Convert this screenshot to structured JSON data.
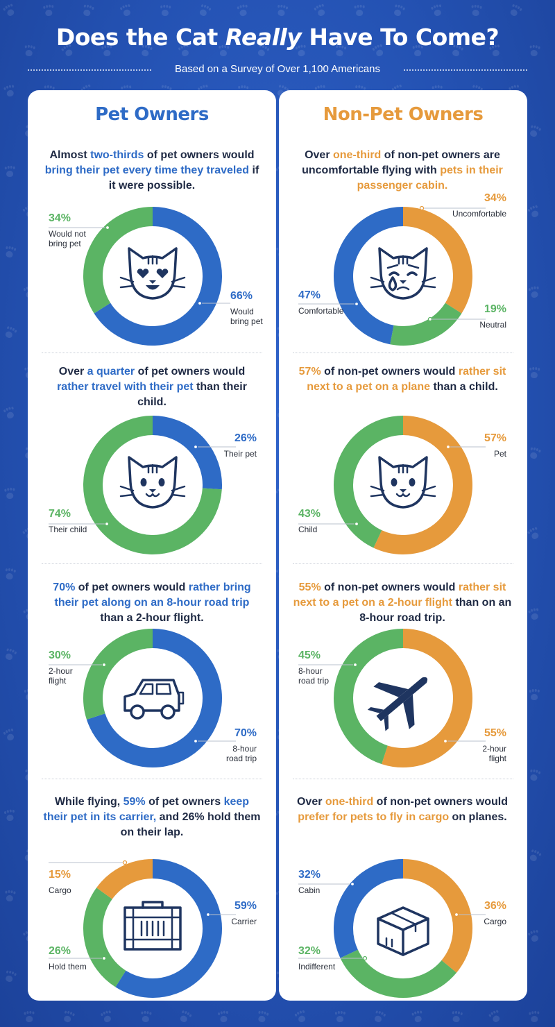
{
  "title_pre": "Does the Cat ",
  "title_em": "Really",
  "title_post": " Have To Come?",
  "subtitle": "Based on a Survey of Over 1,100 Americans",
  "colors": {
    "blue": "#2e6bc6",
    "green": "#5bb464",
    "orange": "#e69a3c",
    "navy": "#1f3560"
  },
  "left": {
    "heading": "Pet Owners",
    "statements": [
      [
        [
          "Almost ",
          ""
        ],
        [
          "two-thirds",
          "c"
        ],
        [
          " of pet owners would ",
          ""
        ],
        [
          "bring their pet every time they traveled",
          "c"
        ],
        [
          " if it were possible.",
          ""
        ]
      ],
      [
        [
          "Over ",
          ""
        ],
        [
          "a quarter",
          "c"
        ],
        [
          " of pet owners would ",
          ""
        ],
        [
          "rather travel with their pet",
          "c"
        ],
        [
          " than their child.",
          ""
        ]
      ],
      [
        [
          "70%",
          "c"
        ],
        [
          " of pet owners would ",
          ""
        ],
        [
          "rather bring their pet along on an 8-hour road trip",
          "c"
        ],
        [
          " than a 2-hour flight.",
          ""
        ]
      ],
      [
        [
          "While flying, ",
          ""
        ],
        [
          "59%",
          "c"
        ],
        [
          " of pet owners ",
          ""
        ],
        [
          "keep their pet in its carrier,",
          "c"
        ],
        [
          " and 26% hold them on their lap.",
          ""
        ]
      ]
    ]
  },
  "right": {
    "heading": "Non-Pet Owners",
    "statements": [
      [
        [
          "Over ",
          ""
        ],
        [
          "one-third",
          "o"
        ],
        [
          " of non-pet owners are uncomfortable flying with ",
          ""
        ],
        [
          "pets in their passenger cabin.",
          "o"
        ]
      ],
      [
        [
          "57%",
          "o"
        ],
        [
          " of non-pet owners would ",
          ""
        ],
        [
          "rather sit next to a pet on a plane",
          "o"
        ],
        [
          " than a child.",
          ""
        ]
      ],
      [
        [
          "55%",
          "o"
        ],
        [
          " of non-pet owners would ",
          ""
        ],
        [
          "rather sit next to a pet on a 2-hour flight",
          "o"
        ],
        [
          " than on an 8-hour road trip.",
          ""
        ]
      ],
      [
        [
          "Over ",
          ""
        ],
        [
          "one-third",
          "o"
        ],
        [
          " of non-pet owners would ",
          ""
        ],
        [
          "prefer for pets to fly in cargo",
          "o"
        ],
        [
          " on planes.",
          ""
        ]
      ]
    ]
  },
  "chart_data": [
    {
      "type": "pie",
      "icon": "heart-eyes-cat-icon",
      "categories": [
        "Would bring pet",
        "Would not bring pet"
      ],
      "values": [
        66,
        34
      ],
      "colors": [
        "#2e6bc6",
        "#5bb464"
      ]
    },
    {
      "type": "pie",
      "icon": "crying-cat-icon",
      "categories": [
        "Uncomfortable",
        "Neutral",
        "Comfortable"
      ],
      "values": [
        34,
        19,
        47
      ],
      "colors": [
        "#e69a3c",
        "#5bb464",
        "#2e6bc6"
      ]
    },
    {
      "type": "pie",
      "icon": "cat-face-icon",
      "categories": [
        "Their pet",
        "Their child"
      ],
      "values": [
        26,
        74
      ],
      "colors": [
        "#2e6bc6",
        "#5bb464"
      ]
    },
    {
      "type": "pie",
      "icon": "cat-face-icon",
      "categories": [
        "Pet",
        "Child"
      ],
      "values": [
        57,
        43
      ],
      "colors": [
        "#e69a3c",
        "#5bb464"
      ]
    },
    {
      "type": "pie",
      "icon": "car-icon",
      "categories": [
        "8-hour road trip",
        "2-hour flight"
      ],
      "values": [
        70,
        30
      ],
      "colors": [
        "#2e6bc6",
        "#5bb464"
      ]
    },
    {
      "type": "pie",
      "icon": "airplane-icon",
      "categories": [
        "2-hour flight",
        "8-hour road trip"
      ],
      "values": [
        55,
        45
      ],
      "colors": [
        "#e69a3c",
        "#5bb464"
      ]
    },
    {
      "type": "pie",
      "icon": "pet-carrier-icon",
      "categories": [
        "Carrier",
        "Hold them",
        "Cargo"
      ],
      "values": [
        59,
        26,
        15
      ],
      "colors": [
        "#2e6bc6",
        "#5bb464",
        "#e69a3c"
      ]
    },
    {
      "type": "pie",
      "icon": "box-icon",
      "categories": [
        "Cargo",
        "Indifferent",
        "Cabin"
      ],
      "values": [
        36,
        32,
        32
      ],
      "colors": [
        "#e69a3c",
        "#5bb464",
        "#2e6bc6"
      ]
    }
  ]
}
